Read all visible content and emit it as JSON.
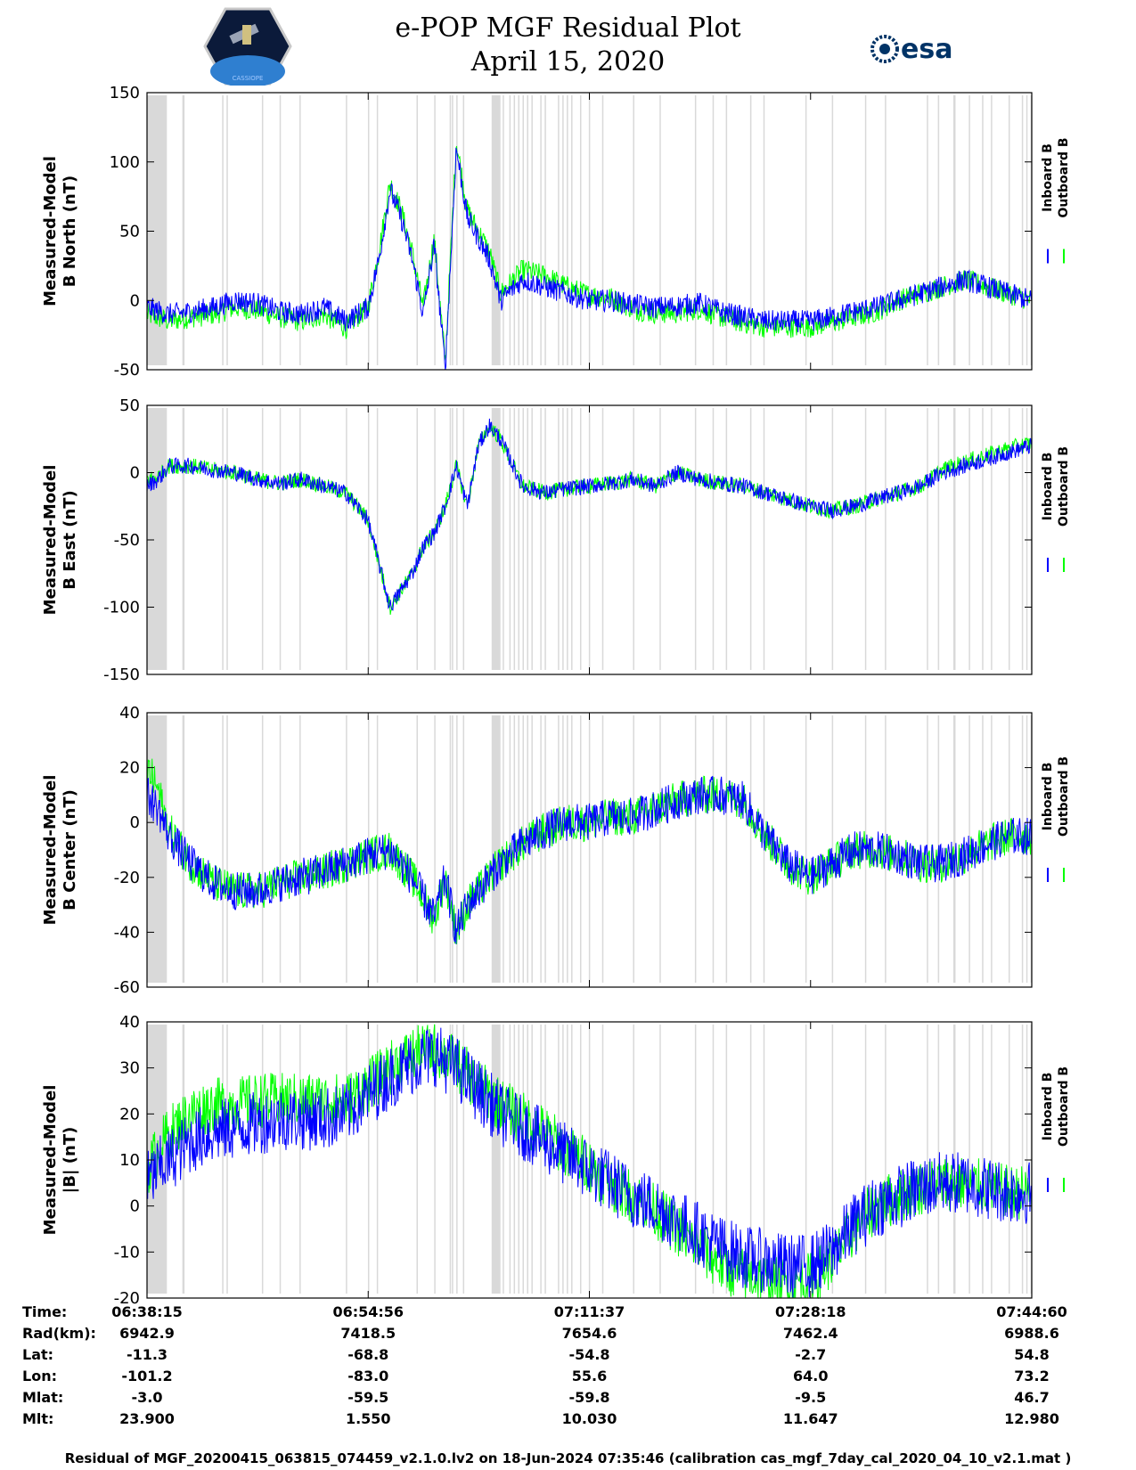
{
  "title": {
    "line1": "e-POP MGF Residual Plot",
    "line2": "April 15, 2020"
  },
  "logos": {
    "left": "cassiope-mission-patch",
    "right": "esa",
    "right_text": "esa",
    "patch_text": "CASSIOPE"
  },
  "colors": {
    "inboard": "#0000ff",
    "outboard": "#00ff00",
    "gap_shading": "#d9d9d9"
  },
  "legend": {
    "inboard": "Inboard B",
    "outboard": "Outboard B"
  },
  "chart_data": [
    {
      "type": "line",
      "ylabel": [
        "Measured-Model",
        "B North (nT)"
      ],
      "ylim": [
        -50,
        150
      ],
      "yticks": [
        -50,
        0,
        50,
        100,
        150
      ],
      "xlim": [
        0,
        4005
      ],
      "series": [
        {
          "name": "Inboard B",
          "x": [
            0,
            100,
            200,
            300,
            400,
            500,
            600,
            700,
            800,
            900,
            1000,
            1050,
            1100,
            1150,
            1200,
            1250,
            1300,
            1350,
            1400,
            1450,
            1500,
            1550,
            1600,
            1700,
            1800,
            1900,
            2000,
            2100,
            2200,
            2300,
            2400,
            2500,
            2600,
            2700,
            2800,
            2900,
            3000,
            3100,
            3200,
            3300,
            3400,
            3500,
            3600,
            3700,
            3800,
            3900,
            4005
          ],
          "y": [
            -5,
            -10,
            -8,
            -5,
            0,
            -2,
            -8,
            -10,
            -5,
            -15,
            -5,
            30,
            80,
            60,
            30,
            -10,
            40,
            -50,
            110,
            60,
            45,
            30,
            0,
            15,
            10,
            5,
            0,
            0,
            -3,
            -5,
            -4,
            -2,
            -8,
            -12,
            -15,
            -15,
            -15,
            -12,
            -8,
            -5,
            0,
            5,
            10,
            15,
            10,
            5,
            0
          ],
          "noise": 8
        },
        {
          "name": "Outboard B",
          "x": [
            0,
            100,
            200,
            300,
            400,
            500,
            600,
            700,
            800,
            900,
            1000,
            1050,
            1100,
            1150,
            1200,
            1250,
            1300,
            1350,
            1400,
            1450,
            1500,
            1550,
            1600,
            1700,
            1800,
            1900,
            2000,
            2100,
            2200,
            2300,
            2400,
            2500,
            2600,
            2700,
            2800,
            2900,
            3000,
            3100,
            3200,
            3300,
            3400,
            3500,
            3600,
            3700,
            3800,
            3900,
            4005
          ],
          "y": [
            -10,
            -15,
            -12,
            -10,
            -5,
            -7,
            -12,
            -15,
            -10,
            -20,
            -5,
            35,
            85,
            65,
            35,
            -5,
            45,
            -45,
            115,
            65,
            50,
            35,
            5,
            22,
            18,
            10,
            4,
            2,
            -6,
            -9,
            -9,
            -6,
            -12,
            -16,
            -19,
            -19,
            -19,
            -16,
            -12,
            -8,
            0,
            5,
            10,
            15,
            10,
            5,
            0
          ],
          "noise": 8
        }
      ]
    },
    {
      "type": "line",
      "ylabel": [
        "Measured-Model",
        "B East (nT)"
      ],
      "ylim": [
        -150,
        50
      ],
      "yticks": [
        -150,
        -100,
        -50,
        0,
        50
      ],
      "xlim": [
        0,
        4005
      ],
      "series": [
        {
          "name": "Inboard B",
          "x": [
            0,
            50,
            100,
            200,
            300,
            400,
            500,
            600,
            700,
            800,
            900,
            1000,
            1100,
            1200,
            1250,
            1300,
            1350,
            1400,
            1450,
            1500,
            1550,
            1600,
            1700,
            1800,
            1900,
            2000,
            2100,
            2200,
            2300,
            2400,
            2500,
            2600,
            2700,
            2800,
            2900,
            3000,
            3100,
            3200,
            3300,
            3400,
            3500,
            3600,
            3700,
            3800,
            3900,
            4005
          ],
          "y": [
            -10,
            -5,
            5,
            5,
            2,
            0,
            -5,
            -8,
            -5,
            -10,
            -15,
            -35,
            -100,
            -75,
            -55,
            -45,
            -25,
            5,
            -25,
            20,
            35,
            25,
            -10,
            -15,
            -12,
            -10,
            -8,
            -5,
            -10,
            0,
            -5,
            -8,
            -10,
            -15,
            -20,
            -25,
            -28,
            -25,
            -20,
            -15,
            -10,
            0,
            5,
            10,
            15,
            20
          ],
          "noise": 6
        },
        {
          "name": "Outboard B",
          "x": [
            0,
            50,
            100,
            200,
            300,
            400,
            500,
            600,
            700,
            800,
            900,
            1000,
            1100,
            1200,
            1250,
            1300,
            1350,
            1400,
            1450,
            1500,
            1550,
            1600,
            1700,
            1800,
            1900,
            2000,
            2100,
            2200,
            2300,
            2400,
            2500,
            2600,
            2700,
            2800,
            2900,
            3000,
            3100,
            3200,
            3300,
            3400,
            3500,
            3600,
            3700,
            3800,
            3900,
            4005
          ],
          "y": [
            -5,
            -3,
            5,
            5,
            2,
            0,
            -5,
            -8,
            -5,
            -10,
            -15,
            -35,
            -100,
            -75,
            -55,
            -45,
            -25,
            5,
            -25,
            20,
            35,
            25,
            -10,
            -15,
            -12,
            -10,
            -8,
            -5,
            -10,
            0,
            -5,
            -8,
            -10,
            -15,
            -20,
            -25,
            -28,
            -25,
            -20,
            -15,
            -10,
            2,
            8,
            13,
            18,
            22
          ],
          "noise": 6
        }
      ]
    },
    {
      "type": "line",
      "ylabel": [
        "Measured-Model",
        "B Center (nT)"
      ],
      "ylim": [
        -60,
        40
      ],
      "yticks": [
        -60,
        -40,
        -20,
        0,
        20,
        40
      ],
      "xlim": [
        0,
        4005
      ],
      "series": [
        {
          "name": "Inboard B",
          "x": [
            0,
            50,
            100,
            200,
            300,
            400,
            500,
            600,
            700,
            800,
            900,
            1000,
            1100,
            1200,
            1300,
            1350,
            1400,
            1450,
            1500,
            1600,
            1700,
            1800,
            1900,
            2000,
            2100,
            2200,
            2300,
            2400,
            2500,
            2600,
            2700,
            2800,
            2900,
            3000,
            3100,
            3200,
            3300,
            3400,
            3500,
            3600,
            3700,
            3800,
            3900,
            4005
          ],
          "y": [
            10,
            5,
            -5,
            -15,
            -22,
            -25,
            -25,
            -22,
            -20,
            -18,
            -15,
            -12,
            -10,
            -20,
            -35,
            -20,
            -40,
            -30,
            -25,
            -15,
            -8,
            -3,
            0,
            0,
            2,
            2,
            5,
            8,
            10,
            10,
            8,
            -5,
            -15,
            -20,
            -15,
            -10,
            -10,
            -12,
            -15,
            -15,
            -12,
            -8,
            -5,
            -5
          ],
          "noise": 7
        },
        {
          "name": "Outboard B",
          "x": [
            0,
            50,
            100,
            200,
            300,
            400,
            500,
            600,
            700,
            800,
            900,
            1000,
            1100,
            1200,
            1300,
            1350,
            1400,
            1450,
            1500,
            1600,
            1700,
            1800,
            1900,
            2000,
            2100,
            2200,
            2300,
            2400,
            2500,
            2600,
            2700,
            2800,
            2900,
            3000,
            3100,
            3200,
            3300,
            3400,
            3500,
            3600,
            3700,
            3800,
            3900,
            4005
          ],
          "y": [
            20,
            12,
            -3,
            -15,
            -22,
            -25,
            -25,
            -22,
            -20,
            -18,
            -15,
            -12,
            -10,
            -20,
            -35,
            -20,
            -40,
            -30,
            -25,
            -15,
            -8,
            -3,
            0,
            0,
            2,
            2,
            5,
            8,
            10,
            10,
            8,
            -5,
            -15,
            -20,
            -15,
            -10,
            -10,
            -12,
            -15,
            -15,
            -12,
            -8,
            -5,
            -5
          ],
          "noise": 7
        }
      ]
    },
    {
      "type": "line",
      "ylabel": [
        "Measured-Model",
        "|B| (nT)"
      ],
      "ylim": [
        -20,
        40
      ],
      "yticks": [
        -20,
        -10,
        0,
        10,
        20,
        30,
        40
      ],
      "xlim": [
        0,
        4005
      ],
      "series": [
        {
          "name": "Inboard B",
          "x": [
            0,
            50,
            100,
            200,
            300,
            400,
            500,
            600,
            700,
            800,
            900,
            1000,
            1100,
            1200,
            1300,
            1400,
            1500,
            1600,
            1700,
            1800,
            1900,
            2000,
            2100,
            2200,
            2300,
            2400,
            2500,
            2600,
            2700,
            2800,
            2900,
            3000,
            3100,
            3200,
            3300,
            3400,
            3500,
            3600,
            3700,
            3800,
            3900,
            4005
          ],
          "y": [
            5,
            8,
            10,
            14,
            16,
            17,
            18,
            19,
            19,
            19,
            20,
            24,
            28,
            31,
            33,
            30,
            25,
            20,
            17,
            14,
            11,
            8,
            5,
            2,
            0,
            -3,
            -6,
            -9,
            -11,
            -12,
            -13,
            -13,
            -10,
            -4,
            0,
            2,
            4,
            5,
            5,
            4,
            3,
            3
          ],
          "noise": 7
        },
        {
          "name": "Outboard B",
          "x": [
            0,
            50,
            100,
            200,
            300,
            400,
            500,
            600,
            700,
            800,
            900,
            1000,
            1100,
            1200,
            1300,
            1400,
            1500,
            1600,
            1700,
            1800,
            1900,
            2000,
            2100,
            2200,
            2300,
            2400,
            2500,
            2600,
            2700,
            2800,
            2900,
            3000,
            3100,
            3200,
            3300,
            3400,
            3500,
            3600,
            3700,
            3800,
            3900,
            4005
          ],
          "y": [
            8,
            12,
            16,
            20,
            22,
            22,
            23,
            23,
            23,
            23,
            23,
            26,
            30,
            33,
            34,
            31,
            26,
            22,
            19,
            16,
            12,
            9,
            5,
            2,
            -1,
            -5,
            -9,
            -13,
            -15,
            -16,
            -17,
            -16,
            -12,
            -5,
            0,
            2,
            4,
            5,
            5,
            4,
            3,
            3
          ],
          "noise": 6
        }
      ]
    }
  ],
  "gaps": [
    [
      0,
      90
    ],
    [
      160,
      170
    ],
    [
      340,
      346
    ],
    [
      360,
      366
    ],
    [
      520,
      526
    ],
    [
      600,
      606
    ],
    [
      690,
      696
    ],
    [
      900,
      906
    ],
    [
      1000,
      1006
    ],
    [
      1040,
      1046
    ],
    [
      1220,
      1226
    ],
    [
      1300,
      1306
    ],
    [
      1370,
      1376
    ],
    [
      1380,
      1386
    ],
    [
      1400,
      1406
    ],
    [
      1430,
      1436
    ],
    [
      1560,
      1600
    ],
    [
      1610,
      1616
    ],
    [
      1640,
      1646
    ],
    [
      1660,
      1666
    ],
    [
      1680,
      1686
    ],
    [
      1700,
      1706
    ],
    [
      1720,
      1726
    ],
    [
      1740,
      1746
    ],
    [
      1780,
      1786
    ],
    [
      1800,
      1806
    ],
    [
      1860,
      1866
    ],
    [
      1880,
      1886
    ],
    [
      1900,
      1906
    ],
    [
      1920,
      1926
    ],
    [
      1960,
      1966
    ],
    [
      2000,
      2006
    ],
    [
      2060,
      2066
    ],
    [
      2200,
      2206
    ],
    [
      2320,
      2326
    ],
    [
      2480,
      2486
    ],
    [
      2560,
      2566
    ],
    [
      2620,
      2626
    ],
    [
      2730,
      2736
    ],
    [
      2790,
      2796
    ],
    [
      2980,
      2986
    ],
    [
      3100,
      3106
    ],
    [
      3250,
      3256
    ],
    [
      3340,
      3346
    ],
    [
      3530,
      3536
    ],
    [
      3580,
      3586
    ],
    [
      3650,
      3660
    ],
    [
      3720,
      3726
    ],
    [
      3780,
      3786
    ],
    [
      3820,
      3826
    ],
    [
      3900,
      3906
    ],
    [
      3960,
      3966
    ],
    [
      3980,
      3986
    ],
    [
      4000,
      4004
    ]
  ],
  "info_table": {
    "labels": [
      "Time:",
      "Rad(km):",
      "Lat:",
      "Lon:",
      "Mlat:",
      "Mlt:"
    ],
    "columns": [
      [
        "06:38:15",
        "6942.9",
        "-11.3",
        "-101.2",
        "-3.0",
        "23.900"
      ],
      [
        "06:54:56",
        "7418.5",
        "-68.8",
        "-83.0",
        "-59.5",
        "1.550"
      ],
      [
        "07:11:37",
        "7654.6",
        "-54.8",
        "55.6",
        "-59.8",
        "10.030"
      ],
      [
        "07:28:18",
        "7462.4",
        "-2.7",
        "64.0",
        "-9.5",
        "11.647"
      ],
      [
        "07:44:60",
        "6988.6",
        "54.8",
        "73.2",
        "46.7",
        "12.980"
      ]
    ]
  },
  "footer": "Residual of MGF_20200415_063815_074459_v2.1.0.lv2 on 18-Jun-2024 07:35:46 (calibration cas_mgf_7day_cal_2020_04_10_v2.1.mat )"
}
